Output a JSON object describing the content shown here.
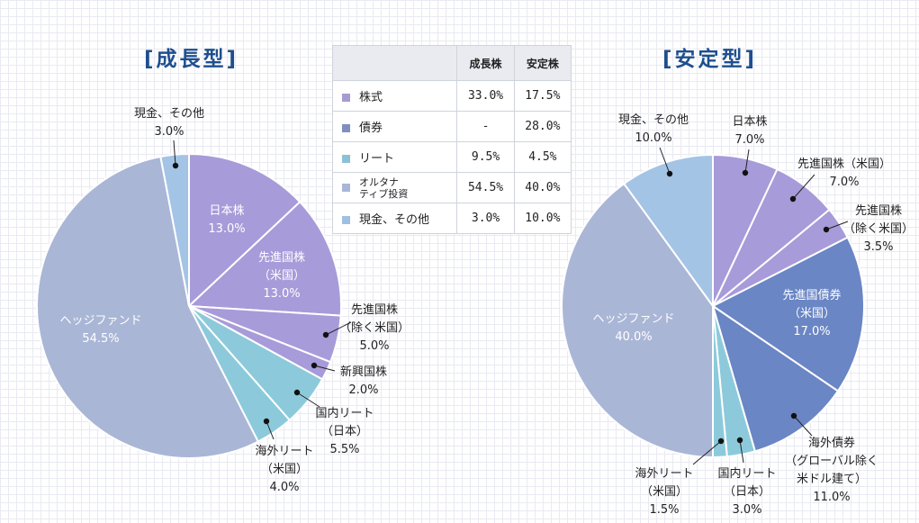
{
  "table": {
    "headers": [
      "",
      "成長株",
      "安定株"
    ],
    "rows": [
      {
        "label": "株式",
        "color": "#a89bcf",
        "growth": "33.0%",
        "stable": "17.5%"
      },
      {
        "label": "債券",
        "color": "#7f8fbf",
        "growth": "-",
        "stable": "28.0%"
      },
      {
        "label": "リート",
        "color": "#8cc0d6",
        "growth": "9.5%",
        "stable": "4.5%"
      },
      {
        "label": "オルタナ\nティブ投資",
        "color": "#a9b6d6",
        "growth": "54.5%",
        "stable": "40.0%"
      },
      {
        "label": "現金、その他",
        "color": "#9fbfe3",
        "growth": "3.0%",
        "stable": "10.0%"
      }
    ]
  },
  "chart_data": [
    {
      "type": "pie",
      "title": "[成長型]",
      "slices": [
        {
          "name": "日本株",
          "value": 13.0,
          "label": "13.0%",
          "color": "#a89bd9"
        },
        {
          "name": "先進国株\n（米国）",
          "value": 13.0,
          "label": "13.0%",
          "color": "#a89bd9"
        },
        {
          "name": "先進国株\n（除く米国）",
          "value": 5.0,
          "label": "5.0%",
          "color": "#a89bd9"
        },
        {
          "name": "新興国株",
          "value": 2.0,
          "label": "2.0%",
          "color": "#a89bd9"
        },
        {
          "name": "国内リート\n（日本）",
          "value": 5.5,
          "label": "5.5%",
          "color": "#8ccadb"
        },
        {
          "name": "海外リート\n（米国）",
          "value": 4.0,
          "label": "4.0%",
          "color": "#8ccadb"
        },
        {
          "name": "ヘッジファンド",
          "value": 54.5,
          "label": "54.5%",
          "color": "#aab6d6"
        },
        {
          "name": "現金、その他",
          "value": 3.0,
          "label": "3.0%",
          "color": "#a4c4e6"
        }
      ]
    },
    {
      "type": "pie",
      "title": "[安定型]",
      "slices": [
        {
          "name": "日本株",
          "value": 7.0,
          "label": "7.0%",
          "color": "#a89bd9"
        },
        {
          "name": "先進国株（米国）",
          "value": 7.0,
          "label": "7.0%",
          "color": "#a89bd9"
        },
        {
          "name": "先進国株\n（除く米国）",
          "value": 3.5,
          "label": "3.5%",
          "color": "#a89bd9"
        },
        {
          "name": "先進国債券\n（米国）",
          "value": 17.0,
          "label": "17.0%",
          "color": "#6a86c4"
        },
        {
          "name": "海外債券\n（グローバル除く\n米ドル建て）",
          "value": 11.0,
          "label": "11.0%",
          "color": "#6a86c4"
        },
        {
          "name": "国内リート\n（日本）",
          "value": 3.0,
          "label": "3.0%",
          "color": "#8ccadb"
        },
        {
          "name": "海外リート\n（米国）",
          "value": 1.5,
          "label": "1.5%",
          "color": "#8ccadb"
        },
        {
          "name": "ヘッジファンド",
          "value": 40.0,
          "label": "40.0%",
          "color": "#aab6d6"
        },
        {
          "name": "現金、その他",
          "value": 10.0,
          "label": "10.0%",
          "color": "#a4c4e6"
        }
      ]
    }
  ]
}
